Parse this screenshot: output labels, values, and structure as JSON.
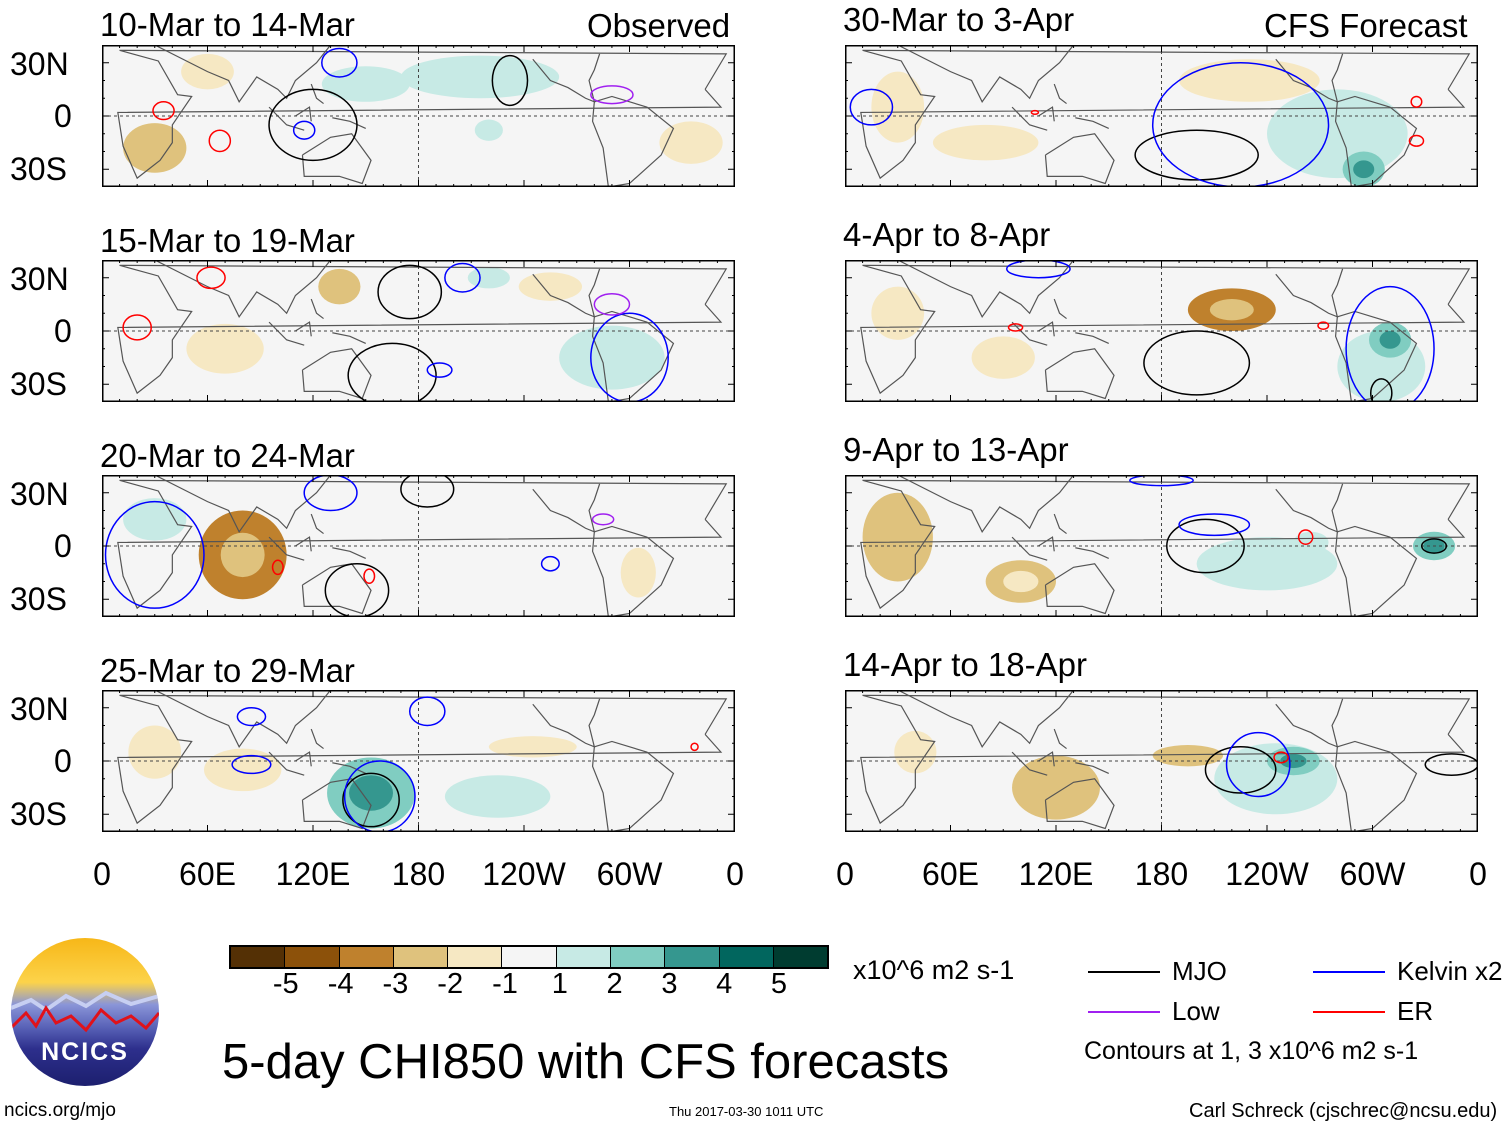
{
  "title": "5-day CHI850 with CFS forecasts",
  "headers": {
    "observed": "Observed",
    "forecast": "CFS Forecast"
  },
  "lat_labels": [
    "30N",
    "0",
    "30S"
  ],
  "lon_labels": [
    "0",
    "60E",
    "120E",
    "180",
    "120W",
    "60W",
    "0"
  ],
  "colorbar": {
    "labels": [
      "-5",
      "-4",
      "-3",
      "-2",
      "-1",
      "1",
      "2",
      "3",
      "4",
      "5"
    ],
    "colors": [
      "#543005",
      "#8c510a",
      "#bf812d",
      "#dfc27d",
      "#f6e8c3",
      "#f5f5f5",
      "#c7eae5",
      "#80cdc1",
      "#35978f",
      "#01665e",
      "#003c30"
    ],
    "units": "x10^6 m2 s-1"
  },
  "legend": {
    "items": [
      {
        "label": "MJO",
        "color": "#000000"
      },
      {
        "label": "Kelvin x2",
        "color": "#0000ff"
      },
      {
        "label": "Low",
        "color": "#a020f0"
      },
      {
        "label": "ER",
        "color": "#ff0000"
      }
    ],
    "note": "Contours at 1, 3 x10^6 m2 s-1"
  },
  "logo": "NCICS",
  "url": "ncics.org/mjo",
  "timestamp": "Thu 2017-03-30 1011 UTC",
  "credit": "Carl Schreck (cjschrec@ncsu.edu)",
  "chart_data": {
    "type": "map",
    "lon_range": [
      0,
      360
    ],
    "lat_range": [
      -40,
      40
    ],
    "panels": [
      {
        "title": "10-Mar to 14-Mar",
        "kind": "observed",
        "shading": [
          {
            "lon": 215,
            "lat": 22,
            "rl": 45,
            "rt": 12,
            "v": 2
          },
          {
            "lon": 150,
            "lat": 18,
            "rl": 25,
            "rt": 10,
            "v": 1.5
          },
          {
            "lon": 30,
            "lat": -18,
            "rl": 18,
            "rt": 14,
            "v": -2
          },
          {
            "lon": 335,
            "lat": -15,
            "rl": 18,
            "rt": 12,
            "v": -1.5
          },
          {
            "lon": 60,
            "lat": 25,
            "rl": 15,
            "rt": 10,
            "v": -1.5
          },
          {
            "lon": 220,
            "lat": -8,
            "rl": 8,
            "rt": 6,
            "v": 1.5
          }
        ],
        "contours": [
          {
            "type": "MJO",
            "lon": 120,
            "lat": -5,
            "rl": 25,
            "rt": 20
          },
          {
            "type": "MJO",
            "lon": 232,
            "lat": 20,
            "rl": 10,
            "rt": 14
          },
          {
            "type": "Kelvin",
            "lon": 115,
            "lat": -8,
            "rl": 6,
            "rt": 5
          },
          {
            "type": "Kelvin",
            "lon": 135,
            "lat": 30,
            "rl": 10,
            "rt": 8
          },
          {
            "type": "ER",
            "lon": 35,
            "lat": 3,
            "rl": 6,
            "rt": 5
          },
          {
            "type": "ER",
            "lon": 67,
            "lat": -14,
            "rl": 6,
            "rt": 6
          },
          {
            "type": "Low",
            "lon": 290,
            "lat": 12,
            "rl": 12,
            "rt": 5
          }
        ]
      },
      {
        "title": "15-Mar to 19-Mar",
        "kind": "observed",
        "shading": [
          {
            "lon": 290,
            "lat": -15,
            "rl": 30,
            "rt": 18,
            "v": 1.5
          },
          {
            "lon": 220,
            "lat": 30,
            "rl": 12,
            "rt": 6,
            "v": 2
          },
          {
            "lon": 135,
            "lat": 25,
            "rl": 12,
            "rt": 10,
            "v": -2
          },
          {
            "lon": 70,
            "lat": -10,
            "rl": 22,
            "rt": 14,
            "v": -1.5
          },
          {
            "lon": 255,
            "lat": 25,
            "rl": 18,
            "rt": 8,
            "v": -1.5
          }
        ],
        "contours": [
          {
            "type": "MJO",
            "lon": 165,
            "lat": -25,
            "rl": 25,
            "rt": 18
          },
          {
            "type": "MJO",
            "lon": 175,
            "lat": 22,
            "rl": 18,
            "rt": 15
          },
          {
            "type": "Kelvin",
            "lon": 300,
            "lat": -15,
            "rl": 22,
            "rt": 25
          },
          {
            "type": "Kelvin",
            "lon": 205,
            "lat": 30,
            "rl": 10,
            "rt": 8
          },
          {
            "type": "Kelvin",
            "lon": 192,
            "lat": -22,
            "rl": 7,
            "rt": 4
          },
          {
            "type": "ER",
            "lon": 20,
            "lat": 2,
            "rl": 8,
            "rt": 7
          },
          {
            "type": "ER",
            "lon": 62,
            "lat": 30,
            "rl": 8,
            "rt": 6
          },
          {
            "type": "Low",
            "lon": 290,
            "lat": 15,
            "rl": 10,
            "rt": 6
          }
        ]
      },
      {
        "title": "20-Mar to 24-Mar",
        "kind": "observed",
        "shading": [
          {
            "lon": 80,
            "lat": -5,
            "rl": 25,
            "rt": 25,
            "v": -3
          },
          {
            "lon": 30,
            "lat": 15,
            "rl": 18,
            "rt": 12,
            "v": 1.5
          },
          {
            "lon": 190,
            "lat": 30,
            "rl": 30,
            "rt": 8,
            "v": 1
          },
          {
            "lon": 305,
            "lat": -15,
            "rl": 10,
            "rt": 14,
            "v": -1.5
          },
          {
            "lon": 230,
            "lat": -10,
            "rl": 25,
            "rt": 8,
            "v": 1
          }
        ],
        "contours": [
          {
            "type": "Kelvin",
            "lon": 30,
            "lat": -5,
            "rl": 28,
            "rt": 30
          },
          {
            "type": "Kelvin",
            "lon": 130,
            "lat": 30,
            "rl": 15,
            "rt": 10
          },
          {
            "type": "MJO",
            "lon": 185,
            "lat": 32,
            "rl": 15,
            "rt": 10
          },
          {
            "type": "MJO",
            "lon": 145,
            "lat": -25,
            "rl": 18,
            "rt": 15
          },
          {
            "type": "ER",
            "lon": 100,
            "lat": -12,
            "rl": 3,
            "rt": 4
          },
          {
            "type": "ER",
            "lon": 152,
            "lat": -17,
            "rl": 3,
            "rt": 4
          },
          {
            "type": "Kelvin",
            "lon": 255,
            "lat": -10,
            "rl": 5,
            "rt": 4
          },
          {
            "type": "Low",
            "lon": 285,
            "lat": 15,
            "rl": 6,
            "rt": 3
          }
        ]
      },
      {
        "title": "25-Mar to 29-Mar",
        "kind": "observed",
        "shading": [
          {
            "lon": 153,
            "lat": -18,
            "rl": 25,
            "rt": 20,
            "v": 3
          },
          {
            "lon": 80,
            "lat": -5,
            "rl": 22,
            "rt": 12,
            "v": -1.5
          },
          {
            "lon": 245,
            "lat": 8,
            "rl": 25,
            "rt": 6,
            "v": -1.5
          },
          {
            "lon": 225,
            "lat": -20,
            "rl": 30,
            "rt": 12,
            "v": 1.5
          },
          {
            "lon": 30,
            "lat": 5,
            "rl": 15,
            "rt": 15,
            "v": -1.5
          }
        ],
        "contours": [
          {
            "type": "MJO",
            "lon": 153,
            "lat": -22,
            "rl": 16,
            "rt": 15
          },
          {
            "type": "Kelvin",
            "lon": 158,
            "lat": -20,
            "rl": 20,
            "rt": 20
          },
          {
            "type": "Kelvin",
            "lon": 85,
            "lat": -2,
            "rl": 11,
            "rt": 5
          },
          {
            "type": "Kelvin",
            "lon": 185,
            "lat": 28,
            "rl": 10,
            "rt": 8
          },
          {
            "type": "Kelvin",
            "lon": 85,
            "lat": 25,
            "rl": 8,
            "rt": 5
          },
          {
            "type": "ER",
            "lon": 337,
            "lat": 8,
            "rl": 2,
            "rt": 2
          }
        ]
      },
      {
        "title": "30-Mar to 3-Apr",
        "kind": "forecast",
        "shading": [
          {
            "lon": 280,
            "lat": -10,
            "rl": 40,
            "rt": 25,
            "v": 1.5
          },
          {
            "lon": 295,
            "lat": -30,
            "rl": 12,
            "rt": 10,
            "v": 3
          },
          {
            "lon": 80,
            "lat": -15,
            "rl": 30,
            "rt": 10,
            "v": -1.5
          },
          {
            "lon": 230,
            "lat": 20,
            "rl": 40,
            "rt": 12,
            "v": -1.5
          },
          {
            "lon": 30,
            "lat": 5,
            "rl": 15,
            "rt": 20,
            "v": -1.5
          }
        ],
        "contours": [
          {
            "type": "MJO",
            "lon": 200,
            "lat": -22,
            "rl": 35,
            "rt": 14
          },
          {
            "type": "Kelvin",
            "lon": 225,
            "lat": -5,
            "rl": 50,
            "rt": 35
          },
          {
            "type": "Kelvin",
            "lon": 15,
            "lat": 5,
            "rl": 12,
            "rt": 10
          },
          {
            "type": "ER",
            "lon": 325,
            "lat": -14,
            "rl": 4,
            "rt": 3
          },
          {
            "type": "ER",
            "lon": 325,
            "lat": 8,
            "rl": 3,
            "rt": 3
          },
          {
            "type": "ER",
            "lon": 108,
            "lat": 2,
            "rl": 2,
            "rt": 1
          }
        ]
      },
      {
        "title": "4-Apr to 8-Apr",
        "kind": "forecast",
        "shading": [
          {
            "lon": 220,
            "lat": 12,
            "rl": 25,
            "rt": 12,
            "v": -3
          },
          {
            "lon": 305,
            "lat": -20,
            "rl": 25,
            "rt": 20,
            "v": 2
          },
          {
            "lon": 310,
            "lat": -5,
            "rl": 12,
            "rt": 10,
            "v": 3
          },
          {
            "lon": 90,
            "lat": -15,
            "rl": 18,
            "rt": 12,
            "v": -1.5
          },
          {
            "lon": 30,
            "lat": 10,
            "rl": 15,
            "rt": 15,
            "v": -1.5
          }
        ],
        "contours": [
          {
            "type": "MJO",
            "lon": 200,
            "lat": -18,
            "rl": 30,
            "rt": 18
          },
          {
            "type": "MJO",
            "lon": 305,
            "lat": -35,
            "rl": 6,
            "rt": 8
          },
          {
            "type": "Kelvin",
            "lon": 310,
            "lat": -10,
            "rl": 25,
            "rt": 35
          },
          {
            "type": "Kelvin",
            "lon": 110,
            "lat": 35,
            "rl": 18,
            "rt": 5
          },
          {
            "type": "ER",
            "lon": 97,
            "lat": 2,
            "rl": 4,
            "rt": 2
          },
          {
            "type": "ER",
            "lon": 272,
            "lat": 3,
            "rl": 3,
            "rt": 2
          }
        ]
      },
      {
        "title": "9-Apr to 13-Apr",
        "kind": "forecast",
        "shading": [
          {
            "lon": 100,
            "lat": -20,
            "rl": 20,
            "rt": 12,
            "v": -2.5
          },
          {
            "lon": 30,
            "lat": 5,
            "rl": 20,
            "rt": 25,
            "v": -2
          },
          {
            "lon": 240,
            "lat": -10,
            "rl": 40,
            "rt": 15,
            "v": 1.5
          },
          {
            "lon": 335,
            "lat": 0,
            "rl": 12,
            "rt": 8,
            "v": 3
          },
          {
            "lon": 265,
            "lat": 2,
            "rl": 10,
            "rt": 6,
            "v": 2
          }
        ],
        "contours": [
          {
            "type": "MJO",
            "lon": 205,
            "lat": 0,
            "rl": 22,
            "rt": 15
          },
          {
            "type": "MJO",
            "lon": 335,
            "lat": 0,
            "rl": 7,
            "rt": 4
          },
          {
            "type": "Kelvin",
            "lon": 210,
            "lat": 12,
            "rl": 20,
            "rt": 6
          },
          {
            "type": "Kelvin",
            "lon": 180,
            "lat": 37,
            "rl": 18,
            "rt": 3
          },
          {
            "type": "ER",
            "lon": 262,
            "lat": 5,
            "rl": 4,
            "rt": 4
          }
        ]
      },
      {
        "title": "14-Apr to 18-Apr",
        "kind": "forecast",
        "shading": [
          {
            "lon": 120,
            "lat": -15,
            "rl": 25,
            "rt": 18,
            "v": -2
          },
          {
            "lon": 195,
            "lat": 3,
            "rl": 20,
            "rt": 6,
            "v": -2
          },
          {
            "lon": 245,
            "lat": -10,
            "rl": 35,
            "rt": 20,
            "v": 1.5
          },
          {
            "lon": 255,
            "lat": 0,
            "rl": 15,
            "rt": 8,
            "v": 2.5
          },
          {
            "lon": 40,
            "lat": 5,
            "rl": 12,
            "rt": 12,
            "v": -1.5
          }
        ],
        "contours": [
          {
            "type": "MJO",
            "lon": 225,
            "lat": -5,
            "rl": 20,
            "rt": 13
          },
          {
            "type": "MJO",
            "lon": 345,
            "lat": -2,
            "rl": 15,
            "rt": 6
          },
          {
            "type": "Kelvin",
            "lon": 235,
            "lat": -2,
            "rl": 18,
            "rt": 18
          },
          {
            "type": "ER",
            "lon": 248,
            "lat": 2,
            "rl": 4,
            "rt": 3
          }
        ]
      }
    ]
  }
}
